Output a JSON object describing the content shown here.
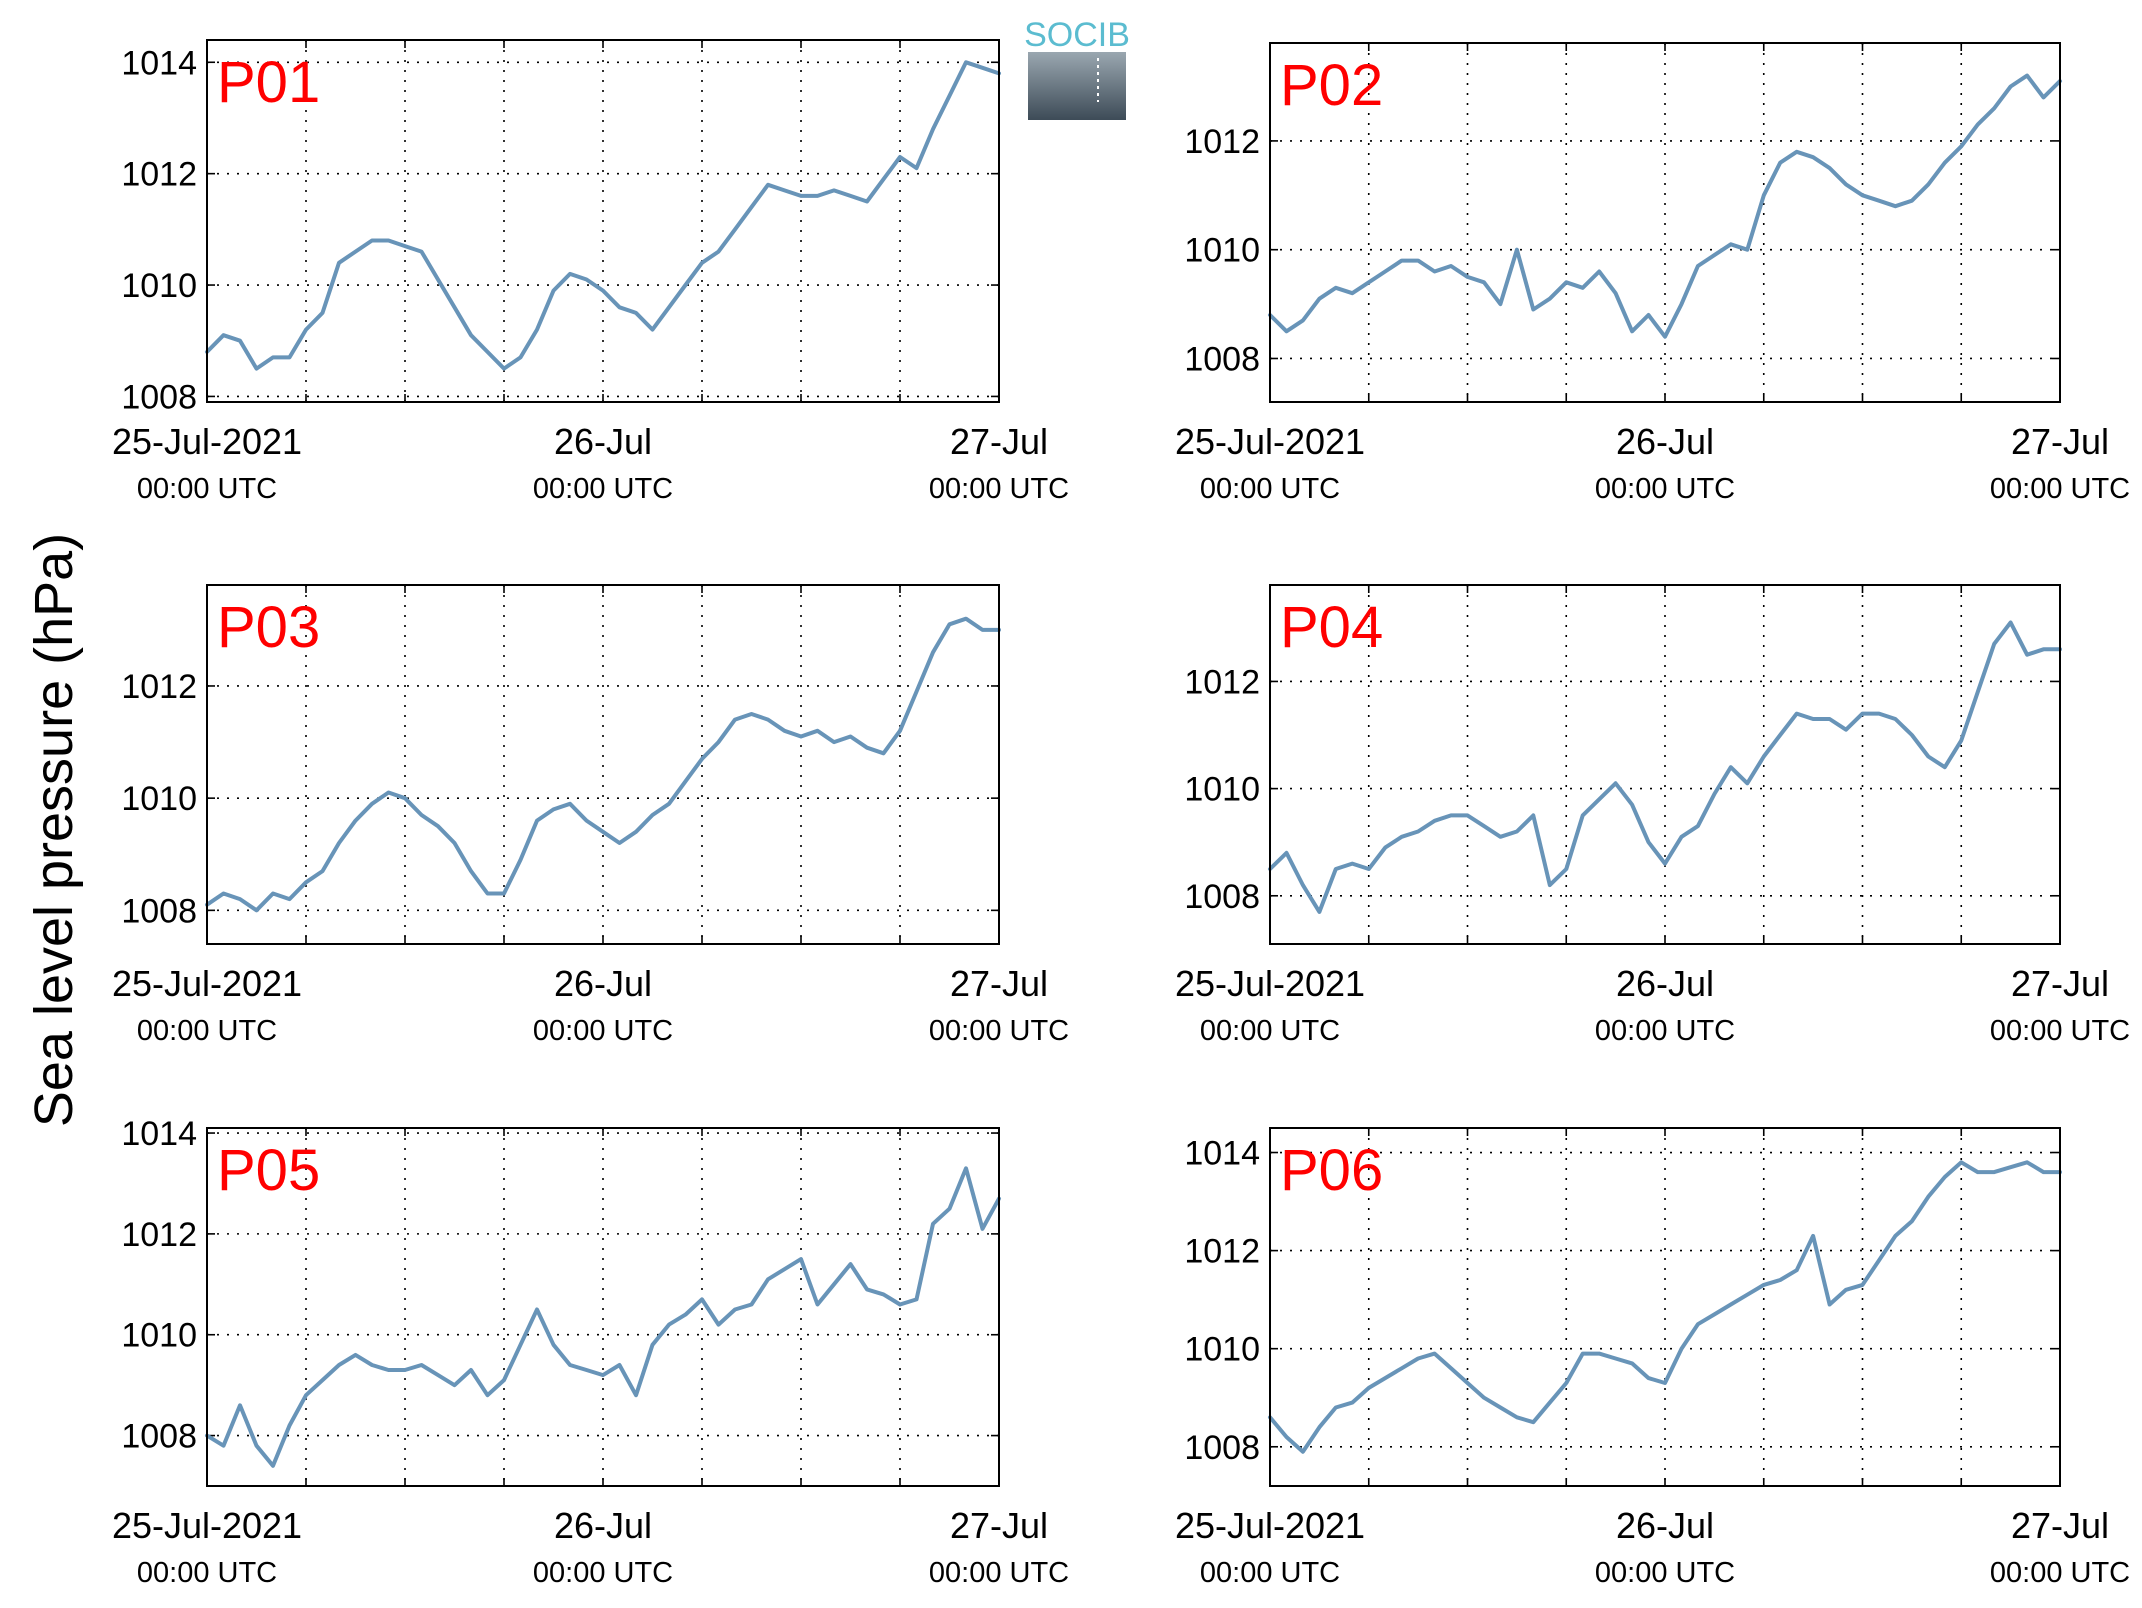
{
  "logo": {
    "text": "SOCIB"
  },
  "ylabel": "Sea level pressure (hPa)",
  "colors": {
    "line": "#6894b8",
    "label": "#ff0000",
    "grid": "#000000"
  },
  "chart_data": [
    {
      "type": "line",
      "title": "P01",
      "x_ticks": [
        {
          "date": "25-Jul-2021",
          "time": "00:00 UTC"
        },
        {
          "date": "26-Jul",
          "time": "00:00 UTC"
        },
        {
          "date": "27-Jul",
          "time": "00:00 UTC"
        }
      ],
      "ylim": [
        1007.9,
        1014.4
      ],
      "yticks": [
        1008,
        1010,
        1012,
        1014
      ],
      "grid": true,
      "x": [
        0,
        1,
        2,
        3,
        4,
        5,
        6,
        7,
        8,
        9,
        10,
        11,
        12,
        13,
        14,
        15,
        16,
        17,
        18,
        19,
        20,
        21,
        22,
        23,
        24,
        25,
        26,
        27,
        28,
        29,
        30,
        31,
        32,
        33,
        34,
        35,
        36,
        37,
        38,
        39,
        40,
        41,
        42,
        43,
        44,
        45,
        46,
        47,
        48
      ],
      "values": [
        1008.8,
        1009.1,
        1009.0,
        1008.5,
        1008.7,
        1008.7,
        1009.2,
        1009.5,
        1010.4,
        1010.6,
        1010.8,
        1010.8,
        1010.7,
        1010.6,
        1010.1,
        1009.6,
        1009.1,
        1008.8,
        1008.5,
        1008.7,
        1009.2,
        1009.9,
        1010.2,
        1010.1,
        1009.9,
        1009.6,
        1009.5,
        1009.2,
        1009.6,
        1010.0,
        1010.4,
        1010.6,
        1011.0,
        1011.4,
        1011.8,
        1011.7,
        1011.6,
        1011.6,
        1011.7,
        1011.6,
        1011.5,
        1011.9,
        1012.3,
        1012.1,
        1012.8,
        1013.4,
        1014.0,
        1013.9,
        1013.8
      ]
    },
    {
      "type": "line",
      "title": "P02",
      "x_ticks": [
        {
          "date": "25-Jul-2021",
          "time": "00:00 UTC"
        },
        {
          "date": "26-Jul",
          "time": "00:00 UTC"
        },
        {
          "date": "27-Jul",
          "time": "00:00 UTC"
        }
      ],
      "ylim": [
        1007.2,
        1013.8
      ],
      "yticks": [
        1008,
        1010,
        1012
      ],
      "grid": true,
      "x": [
        0,
        1,
        2,
        3,
        4,
        5,
        6,
        7,
        8,
        9,
        10,
        11,
        12,
        13,
        14,
        15,
        16,
        17,
        18,
        19,
        20,
        21,
        22,
        23,
        24,
        25,
        26,
        27,
        28,
        29,
        30,
        31,
        32,
        33,
        34,
        35,
        36,
        37,
        38,
        39,
        40,
        41,
        42,
        43,
        44,
        45,
        46,
        47,
        48
      ],
      "values": [
        1008.8,
        1008.5,
        1008.7,
        1009.1,
        1009.3,
        1009.2,
        1009.4,
        1009.6,
        1009.8,
        1009.8,
        1009.6,
        1009.7,
        1009.5,
        1009.4,
        1009.0,
        1010.0,
        1008.9,
        1009.1,
        1009.4,
        1009.3,
        1009.6,
        1009.2,
        1008.5,
        1008.8,
        1008.4,
        1009.0,
        1009.7,
        1009.9,
        1010.1,
        1010.0,
        1011.0,
        1011.6,
        1011.8,
        1011.7,
        1011.5,
        1011.2,
        1011.0,
        1010.9,
        1010.8,
        1010.9,
        1011.2,
        1011.6,
        1011.9,
        1012.3,
        1012.6,
        1013.0,
        1013.2,
        1012.8,
        1013.1
      ]
    },
    {
      "type": "line",
      "title": "P03",
      "x_ticks": [
        {
          "date": "25-Jul-2021",
          "time": "00:00 UTC"
        },
        {
          "date": "26-Jul",
          "time": "00:00 UTC"
        },
        {
          "date": "27-Jul",
          "time": "00:00 UTC"
        }
      ],
      "ylim": [
        1007.4,
        1013.8
      ],
      "yticks": [
        1008,
        1010,
        1012
      ],
      "grid": true,
      "x": [
        0,
        1,
        2,
        3,
        4,
        5,
        6,
        7,
        8,
        9,
        10,
        11,
        12,
        13,
        14,
        15,
        16,
        17,
        18,
        19,
        20,
        21,
        22,
        23,
        24,
        25,
        26,
        27,
        28,
        29,
        30,
        31,
        32,
        33,
        34,
        35,
        36,
        37,
        38,
        39,
        40,
        41,
        42,
        43,
        44,
        45,
        46,
        47,
        48
      ],
      "values": [
        1008.1,
        1008.3,
        1008.2,
        1008.0,
        1008.3,
        1008.2,
        1008.5,
        1008.7,
        1009.2,
        1009.6,
        1009.9,
        1010.1,
        1010.0,
        1009.7,
        1009.5,
        1009.2,
        1008.7,
        1008.3,
        1008.3,
        1008.9,
        1009.6,
        1009.8,
        1009.9,
        1009.6,
        1009.4,
        1009.2,
        1009.4,
        1009.7,
        1009.9,
        1010.3,
        1010.7,
        1011.0,
        1011.4,
        1011.5,
        1011.4,
        1011.2,
        1011.1,
        1011.2,
        1011.0,
        1011.1,
        1010.9,
        1010.8,
        1011.2,
        1011.9,
        1012.6,
        1013.1,
        1013.2,
        1013.0,
        1013.0
      ]
    },
    {
      "type": "line",
      "title": "P04",
      "x_ticks": [
        {
          "date": "25-Jul-2021",
          "time": "00:00 UTC"
        },
        {
          "date": "26-Jul",
          "time": "00:00 UTC"
        },
        {
          "date": "27-Jul",
          "time": "00:00 UTC"
        }
      ],
      "ylim": [
        1007.1,
        1013.8
      ],
      "yticks": [
        1008,
        1010,
        1012
      ],
      "grid": true,
      "x": [
        0,
        1,
        2,
        3,
        4,
        5,
        6,
        7,
        8,
        9,
        10,
        11,
        12,
        13,
        14,
        15,
        16,
        17,
        18,
        19,
        20,
        21,
        22,
        23,
        24,
        25,
        26,
        27,
        28,
        29,
        30,
        31,
        32,
        33,
        34,
        35,
        36,
        37,
        38,
        39,
        40,
        41,
        42,
        43,
        44,
        45,
        46,
        47,
        48
      ],
      "values": [
        1008.5,
        1008.8,
        1008.2,
        1007.7,
        1008.5,
        1008.6,
        1008.5,
        1008.9,
        1009.1,
        1009.2,
        1009.4,
        1009.5,
        1009.5,
        1009.3,
        1009.1,
        1009.2,
        1009.5,
        1008.2,
        1008.5,
        1009.5,
        1009.8,
        1010.1,
        1009.7,
        1009.0,
        1008.6,
        1009.1,
        1009.3,
        1009.9,
        1010.4,
        1010.1,
        1010.6,
        1011.0,
        1011.4,
        1011.3,
        1011.3,
        1011.1,
        1011.4,
        1011.4,
        1011.3,
        1011.0,
        1010.6,
        1010.4,
        1010.9,
        1011.8,
        1012.7,
        1013.1,
        1012.5,
        1012.6,
        1012.6
      ]
    },
    {
      "type": "line",
      "title": "P05",
      "x_ticks": [
        {
          "date": "25-Jul-2021",
          "time": "00:00 UTC"
        },
        {
          "date": "26-Jul",
          "time": "00:00 UTC"
        },
        {
          "date": "27-Jul",
          "time": "00:00 UTC"
        }
      ],
      "ylim": [
        1007.0,
        1014.1
      ],
      "yticks": [
        1008,
        1010,
        1012,
        1014
      ],
      "grid": true,
      "x": [
        0,
        1,
        2,
        3,
        4,
        5,
        6,
        7,
        8,
        9,
        10,
        11,
        12,
        13,
        14,
        15,
        16,
        17,
        18,
        19,
        20,
        21,
        22,
        23,
        24,
        25,
        26,
        27,
        28,
        29,
        30,
        31,
        32,
        33,
        34,
        35,
        36,
        37,
        38,
        39,
        40,
        41,
        42,
        43,
        44,
        45,
        46,
        47,
        48
      ],
      "values": [
        1008.0,
        1007.8,
        1008.6,
        1007.8,
        1007.4,
        1008.2,
        1008.8,
        1009.1,
        1009.4,
        1009.6,
        1009.4,
        1009.3,
        1009.3,
        1009.4,
        1009.2,
        1009.0,
        1009.3,
        1008.8,
        1009.1,
        1009.8,
        1010.5,
        1009.8,
        1009.4,
        1009.3,
        1009.2,
        1009.4,
        1008.8,
        1009.8,
        1010.2,
        1010.4,
        1010.7,
        1010.2,
        1010.5,
        1010.6,
        1011.1,
        1011.3,
        1011.5,
        1010.6,
        1011.0,
        1011.4,
        1010.9,
        1010.8,
        1010.6,
        1010.7,
        1012.2,
        1012.5,
        1013.3,
        1012.1,
        1012.7
      ]
    },
    {
      "type": "line",
      "title": "P06",
      "x_ticks": [
        {
          "date": "25-Jul-2021",
          "time": "00:00 UTC"
        },
        {
          "date": "26-Jul",
          "time": "00:00 UTC"
        },
        {
          "date": "27-Jul",
          "time": "00:00 UTC"
        }
      ],
      "ylim": [
        1007.2,
        1014.5
      ],
      "yticks": [
        1008,
        1010,
        1012,
        1014
      ],
      "grid": true,
      "x": [
        0,
        1,
        2,
        3,
        4,
        5,
        6,
        7,
        8,
        9,
        10,
        11,
        12,
        13,
        14,
        15,
        16,
        17,
        18,
        19,
        20,
        21,
        22,
        23,
        24,
        25,
        26,
        27,
        28,
        29,
        30,
        31,
        32,
        33,
        34,
        35,
        36,
        37,
        38,
        39,
        40,
        41,
        42,
        43,
        44,
        45,
        46,
        47,
        48
      ],
      "values": [
        1008.6,
        1008.2,
        1007.9,
        1008.4,
        1008.8,
        1008.9,
        1009.2,
        1009.4,
        1009.6,
        1009.8,
        1009.9,
        1009.6,
        1009.3,
        1009.0,
        1008.8,
        1008.6,
        1008.5,
        1008.9,
        1009.3,
        1009.9,
        1009.9,
        1009.8,
        1009.7,
        1009.4,
        1009.3,
        1010.0,
        1010.5,
        1010.7,
        1010.9,
        1011.1,
        1011.3,
        1011.4,
        1011.6,
        1012.3,
        1010.9,
        1011.2,
        1011.3,
        1011.8,
        1012.3,
        1012.6,
        1013.1,
        1013.5,
        1013.8,
        1013.6,
        1013.6,
        1013.7,
        1013.8,
        1013.6,
        1013.6
      ]
    }
  ]
}
